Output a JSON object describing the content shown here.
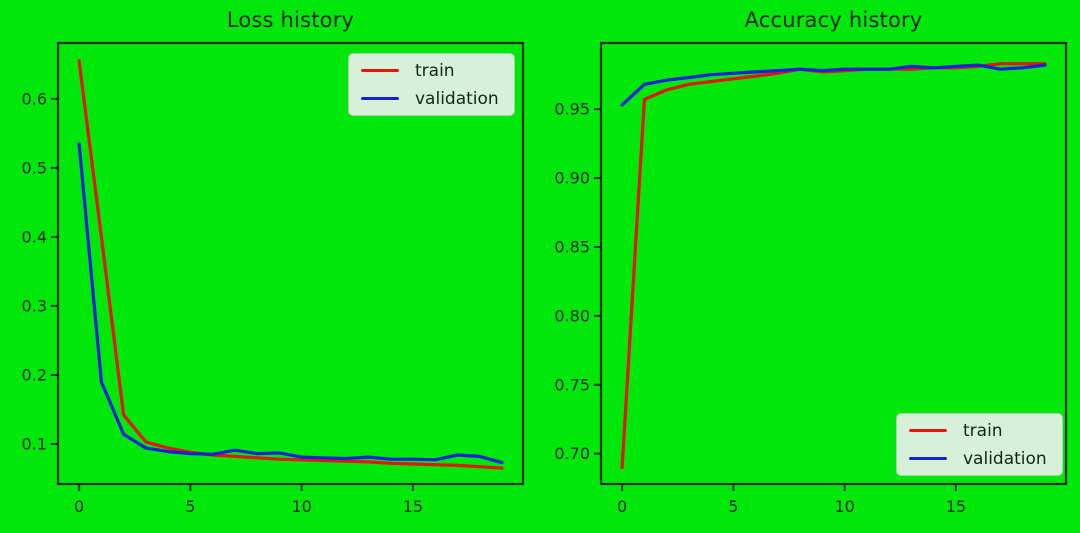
{
  "figure": {
    "background": "#00e70a",
    "text_color": "#0e2a10",
    "spine_color": "#123113",
    "legend_bg": "#d7f0d8",
    "legend_border": "#a6d3a8"
  },
  "chart_data": [
    {
      "type": "line",
      "title": "Loss history",
      "xlabel": "",
      "ylabel": "",
      "grid": false,
      "x": [
        0,
        1,
        2,
        3,
        4,
        5,
        6,
        7,
        8,
        9,
        10,
        11,
        12,
        13,
        14,
        15,
        16,
        17,
        18,
        19
      ],
      "series": [
        {
          "name": "train",
          "color": "#e01810",
          "values": [
            0.655,
            0.4,
            0.142,
            0.103,
            0.094,
            0.088,
            0.084,
            0.082,
            0.08,
            0.078,
            0.077,
            0.076,
            0.075,
            0.074,
            0.072,
            0.071,
            0.07,
            0.069,
            0.067,
            0.065
          ]
        },
        {
          "name": "validation",
          "color": "#1523d8",
          "values": [
            0.535,
            0.19,
            0.114,
            0.094,
            0.089,
            0.086,
            0.085,
            0.091,
            0.086,
            0.087,
            0.081,
            0.08,
            0.079,
            0.081,
            0.078,
            0.078,
            0.077,
            0.084,
            0.082,
            0.073
          ]
        }
      ],
      "xlim": [
        -0.95,
        19.95
      ],
      "ylim": [
        0.042,
        0.681
      ],
      "xticks": [
        0,
        5,
        10,
        15
      ],
      "yticks": [
        0.1,
        0.2,
        0.3,
        0.4,
        0.5,
        0.6
      ],
      "ytick_decimals": 1,
      "legend_position": "upper-right"
    },
    {
      "type": "line",
      "title": "Accuracy history",
      "xlabel": "",
      "ylabel": "",
      "grid": false,
      "x": [
        0,
        1,
        2,
        3,
        4,
        5,
        6,
        7,
        8,
        9,
        10,
        11,
        12,
        13,
        14,
        15,
        16,
        17,
        18,
        19
      ],
      "series": [
        {
          "name": "train",
          "color": "#e01810",
          "values": [
            0.69,
            0.957,
            0.964,
            0.968,
            0.97,
            0.972,
            0.974,
            0.976,
            0.979,
            0.977,
            0.978,
            0.979,
            0.979,
            0.979,
            0.98,
            0.98,
            0.981,
            0.983,
            0.983,
            0.983
          ]
        },
        {
          "name": "validation",
          "color": "#1523d8",
          "values": [
            0.953,
            0.968,
            0.971,
            0.973,
            0.975,
            0.976,
            0.977,
            0.978,
            0.979,
            0.978,
            0.979,
            0.979,
            0.979,
            0.981,
            0.98,
            0.981,
            0.982,
            0.979,
            0.98,
            0.982
          ]
        }
      ],
      "xlim": [
        -0.95,
        19.95
      ],
      "ylim": [
        0.678,
        0.998
      ],
      "xticks": [
        0,
        5,
        10,
        15
      ],
      "yticks": [
        0.7,
        0.75,
        0.8,
        0.85,
        0.9,
        0.95
      ],
      "ytick_decimals": 2,
      "legend_position": "lower-right"
    }
  ]
}
